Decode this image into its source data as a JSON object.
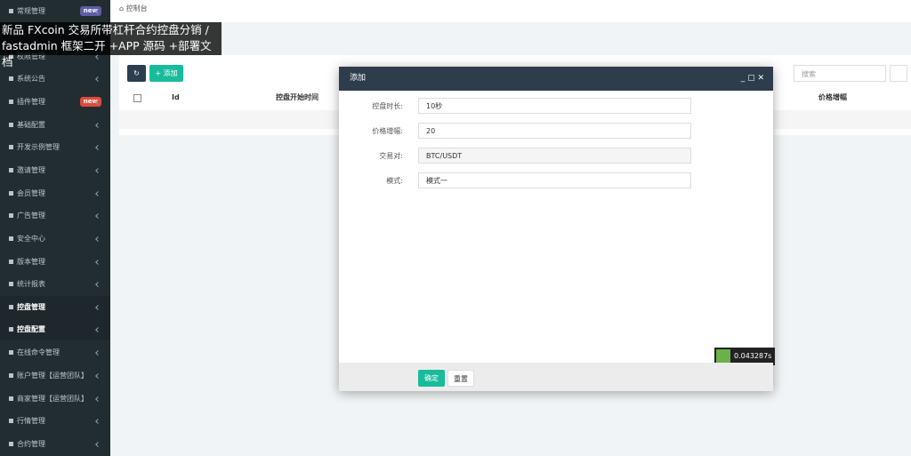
{
  "sidebar": {
    "items": [
      {
        "label": "常规管理",
        "badge": "new"
      },
      {
        "label": "权限管理"
      },
      {
        "label": "系统公告"
      },
      {
        "label": "插件管理",
        "badge": "new"
      },
      {
        "label": "基础配置"
      },
      {
        "label": "开发示例管理"
      },
      {
        "label": "邀请管理"
      },
      {
        "label": "会员管理"
      },
      {
        "label": "广告管理"
      },
      {
        "label": "安全中心"
      },
      {
        "label": "版本管理"
      },
      {
        "label": "统计报表"
      },
      {
        "label": "控盘管理"
      },
      {
        "label": "控盘配置"
      },
      {
        "label": "在线命令管理"
      },
      {
        "label": "账户管理【运营团队】"
      },
      {
        "label": "商家管理【运营团队】"
      },
      {
        "label": "行情管理"
      },
      {
        "label": "合约管理"
      }
    ]
  },
  "overlay": {
    "lines": [
      "新品 FXcoin 交易所带杠杆合约控盘分销 /",
      "fastadmin 框架二开 +APP 源码 +部署文档"
    ]
  },
  "breadcrumb": "控制台",
  "toolbar": {
    "add": "添加",
    "search": "搜索"
  },
  "table": {
    "headers": [
      "Id",
      "控盘开始时间",
      "价格增幅"
    ]
  },
  "modal": {
    "title": "添加",
    "fields": [
      {
        "label": "控盘时长:",
        "value": "10秒"
      },
      {
        "label": "价格增幅:",
        "value": "20"
      },
      {
        "label": "交易对:",
        "value": "BTC/USDT"
      },
      {
        "label": "模式:",
        "value": "模式一"
      }
    ],
    "confirm": "确定",
    "reset": "重置",
    "timer": "0.043287s"
  }
}
